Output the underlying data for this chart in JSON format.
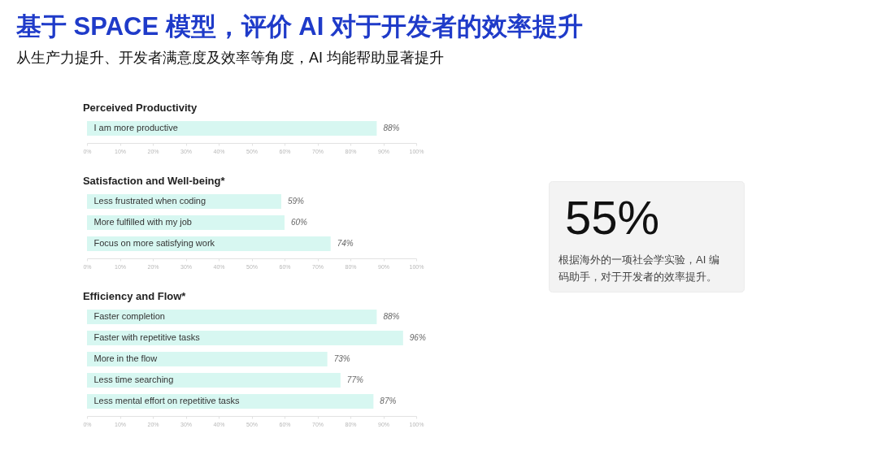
{
  "chart_data": [
    {
      "type": "other",
      "title": "基于 SPACE 模型，评价 AI 对于开发者的效率提升",
      "subtitle": "从生产力提升、开发者满意度及效率等角度，AI 均能帮助显著提升"
    },
    {
      "type": "bar",
      "orientation": "horizontal",
      "title": "Perceived Productivity",
      "categories": [
        "I am more productive"
      ],
      "values": [
        88
      ],
      "value_labels": [
        "88%"
      ],
      "color": "#d7f7f1",
      "xlim": [
        0,
        100
      ],
      "xticks": [
        {
          "value": 0,
          "label": "0%"
        },
        {
          "value": 10,
          "label": "10%"
        },
        {
          "value": 20,
          "label": "20%"
        },
        {
          "value": 30,
          "label": "30%"
        },
        {
          "value": 40,
          "label": "40%"
        },
        {
          "value": 50,
          "label": "50%"
        },
        {
          "value": 60,
          "label": "60%"
        },
        {
          "value": 70,
          "label": "70%"
        },
        {
          "value": 80,
          "label": "80%"
        },
        {
          "value": 90,
          "label": "90%"
        },
        {
          "value": 100,
          "label": "100%"
        }
      ]
    },
    {
      "type": "bar",
      "orientation": "horizontal",
      "title": "Satisfaction and Well-being*",
      "categories": [
        "Less frustrated when coding",
        "More fulfilled with my job",
        "Focus on more satisfying work"
      ],
      "values": [
        59,
        60,
        74
      ],
      "value_labels": [
        "59%",
        "60%",
        "74%"
      ],
      "color": "#d7f7f1",
      "xlim": [
        0,
        100
      ],
      "xticks": [
        {
          "value": 0,
          "label": "0%"
        },
        {
          "value": 10,
          "label": "10%"
        },
        {
          "value": 20,
          "label": "20%"
        },
        {
          "value": 30,
          "label": "30%"
        },
        {
          "value": 40,
          "label": "40%"
        },
        {
          "value": 50,
          "label": "50%"
        },
        {
          "value": 60,
          "label": "60%"
        },
        {
          "value": 70,
          "label": "70%"
        },
        {
          "value": 80,
          "label": "80%"
        },
        {
          "value": 90,
          "label": "90%"
        },
        {
          "value": 100,
          "label": "100%"
        }
      ]
    },
    {
      "type": "bar",
      "orientation": "horizontal",
      "title": "Efficiency and Flow*",
      "categories": [
        "Faster completion",
        "Faster with repetitive tasks",
        "More in the flow",
        "Less time searching",
        "Less mental effort on repetitive tasks"
      ],
      "values": [
        88,
        96,
        73,
        77,
        87
      ],
      "value_labels": [
        "88%",
        "96%",
        "73%",
        "77%",
        "87%"
      ],
      "color": "#d7f7f1",
      "xlim": [
        0,
        100
      ],
      "xticks": [
        {
          "value": 0,
          "label": "0%"
        },
        {
          "value": 10,
          "label": "10%"
        },
        {
          "value": 20,
          "label": "20%"
        },
        {
          "value": 30,
          "label": "30%"
        },
        {
          "value": 40,
          "label": "40%"
        },
        {
          "value": 50,
          "label": "50%"
        },
        {
          "value": 60,
          "label": "60%"
        },
        {
          "value": 70,
          "label": "70%"
        },
        {
          "value": 80,
          "label": "80%"
        },
        {
          "value": 90,
          "label": "90%"
        },
        {
          "value": 100,
          "label": "100%"
        }
      ]
    },
    {
      "type": "other",
      "title": "55%",
      "annotations": [
        "根据海外的一项社会学实验，AI 编码助手，对于开发者的效率提升。"
      ]
    }
  ]
}
